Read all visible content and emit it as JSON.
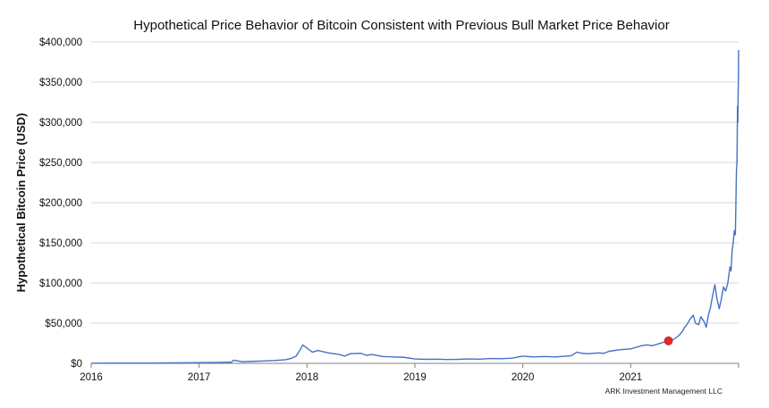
{
  "chart_data": {
    "type": "line",
    "title": "Hypothetical Price Behavior of Bitcoin Consistent with Previous Bull Market Price Behavior",
    "xlabel": "",
    "ylabel": "Hypothetical Bitcoin Price (USD)",
    "credit": "ARK Investment Management LLC",
    "xlim": [
      2016,
      2022
    ],
    "ylim": [
      0,
      400000
    ],
    "x_ticks": [
      "2016",
      "2017",
      "2018",
      "2019",
      "2020",
      "2021"
    ],
    "y_ticks": [
      "$0",
      "$50,000",
      "$100,000",
      "$150,000",
      "$200,000",
      "$250,000",
      "$300,000",
      "$350,000",
      "$400,000"
    ],
    "grid": true,
    "line_color": "#4472C4",
    "marker_color": "#E8292B",
    "series": [
      {
        "x": [
          2016.0,
          2016.5,
          2016.9,
          2017.0,
          2017.2,
          2017.3,
          2017.32,
          2017.4,
          2017.5,
          2017.6,
          2017.7,
          2017.8,
          2017.85,
          2017.9,
          2017.95,
          2017.96,
          2018.0,
          2018.05,
          2018.1,
          2018.2,
          2018.3,
          2018.35,
          2018.4,
          2018.5,
          2018.55,
          2018.6,
          2018.7,
          2018.8,
          2018.9,
          2019.0,
          2019.1,
          2019.2,
          2019.3,
          2019.4,
          2019.5,
          2019.6,
          2019.7,
          2019.8,
          2019.9,
          2020.0,
          2020.1,
          2020.2,
          2020.3,
          2020.4,
          2020.45,
          2020.5,
          2020.55,
          2020.6,
          2020.7,
          2020.75,
          2020.8,
          2020.9,
          2021.0,
          2021.05,
          2021.1,
          2021.15,
          2021.2,
          2021.3,
          2021.35,
          2021.4,
          2021.45,
          2021.48,
          2021.5,
          2021.52,
          2021.55,
          2021.58,
          2021.6,
          2021.63,
          2021.65,
          2021.68,
          2021.7,
          2021.72,
          2021.74,
          2021.76,
          2021.78,
          2021.8,
          2021.82,
          2021.84,
          2021.86,
          2021.88,
          2021.9,
          2021.92,
          2021.93,
          2021.94,
          2021.95,
          2021.96,
          2021.97,
          2021.975,
          2021.98,
          2021.985,
          2021.99,
          2021.993,
          2021.996,
          2021.998,
          2022.0
        ],
        "values": [
          200,
          400,
          700,
          900,
          1200,
          1500,
          4000,
          2000,
          2500,
          3000,
          3500,
          4500,
          6000,
          9000,
          20000,
          23000,
          19000,
          14000,
          16000,
          13000,
          11000,
          9000,
          12000,
          12500,
          10000,
          11000,
          8500,
          8000,
          7500,
          5500,
          5000,
          5200,
          4800,
          5000,
          5500,
          5200,
          6000,
          5800,
          6500,
          9000,
          8000,
          8500,
          8000,
          9000,
          9500,
          14000,
          12500,
          12000,
          13000,
          12500,
          15000,
          17000,
          18000,
          20000,
          22000,
          23000,
          22000,
          26000,
          28000,
          30000,
          35000,
          40000,
          45000,
          48000,
          55000,
          60000,
          50000,
          48000,
          58000,
          52000,
          45000,
          60000,
          70000,
          85000,
          98000,
          80000,
          68000,
          80000,
          95000,
          90000,
          100000,
          120000,
          115000,
          140000,
          150000,
          165000,
          160000,
          200000,
          240000,
          250000,
          320000,
          300000,
          340000,
          350000,
          390000
        ]
      }
    ],
    "highlight_point": {
      "x": 2021.35,
      "y": 28000
    }
  }
}
